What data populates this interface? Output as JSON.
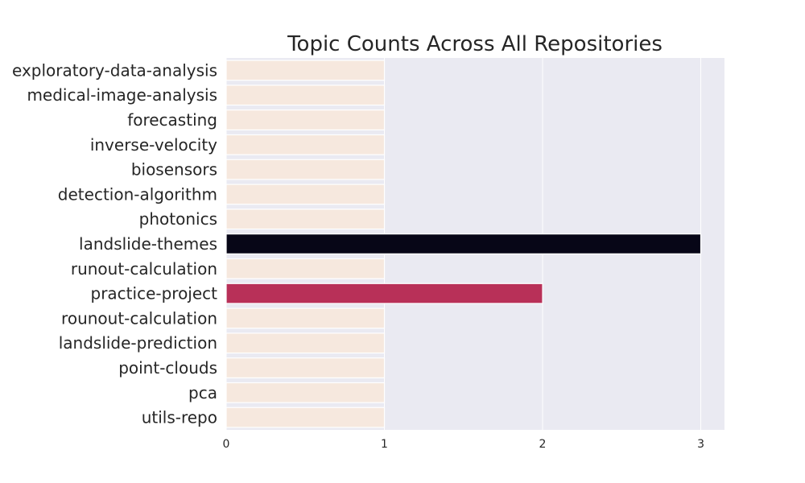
{
  "chart_data": {
    "type": "bar",
    "orientation": "horizontal",
    "title": "Topic Counts Across All Repositories",
    "xlabel": "",
    "ylabel": "",
    "categories": [
      "exploratory-data-analysis",
      "medical-image-analysis",
      "forecasting",
      "inverse-velocity",
      "biosensors",
      "detection-algorithm",
      "photonics",
      "landslide-themes",
      "runout-calculation",
      "practice-project",
      "rounout-calculation",
      "landslide-prediction",
      "point-clouds",
      "pca",
      "utils-repo"
    ],
    "values": [
      1,
      1,
      1,
      1,
      1,
      1,
      1,
      3,
      1,
      2,
      1,
      1,
      1,
      1,
      1
    ],
    "xlim": [
      0,
      3.15
    ],
    "xticks": [
      "0",
      "1",
      "2",
      "3"
    ],
    "grid": true,
    "legend": "none",
    "colors": {
      "plot_background": "#eaeaf2",
      "value_1": "#f6e8de",
      "value_2": "#b83058",
      "value_3": "#070617",
      "bar_edge": "#ffffff",
      "grid": "#ffffff",
      "text": "#262626"
    }
  }
}
